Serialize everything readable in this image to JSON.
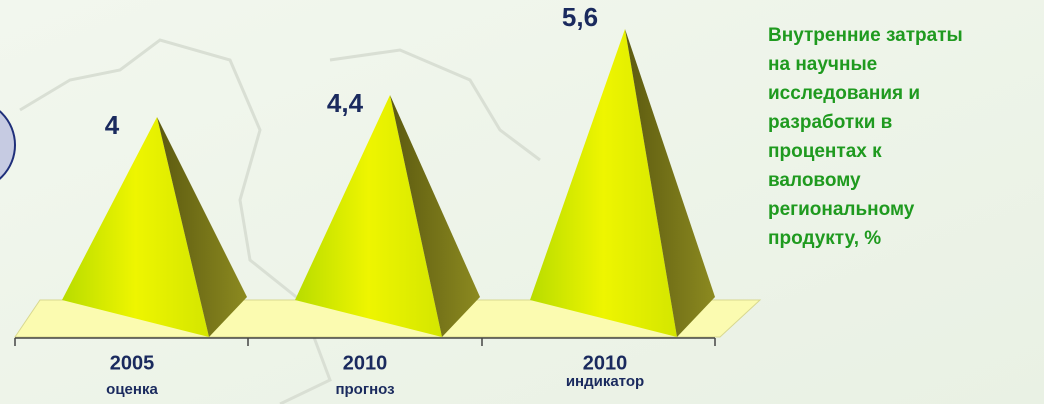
{
  "chart_data": {
    "type": "pyramid",
    "title": [
      "Внутренние затраты",
      "на научные",
      "исследования и",
      "разработки в",
      "процентах к",
      "валовому",
      "региональному",
      "продукту, %"
    ],
    "categories": [
      "2005",
      "2010",
      "2010"
    ],
    "category_notes": [
      "оценка",
      "прогноз",
      "индикатор"
    ],
    "values": [
      4,
      4.4,
      5.6
    ],
    "value_labels": [
      "4",
      "4,4",
      "5,6"
    ],
    "color": "#d8ea00"
  }
}
